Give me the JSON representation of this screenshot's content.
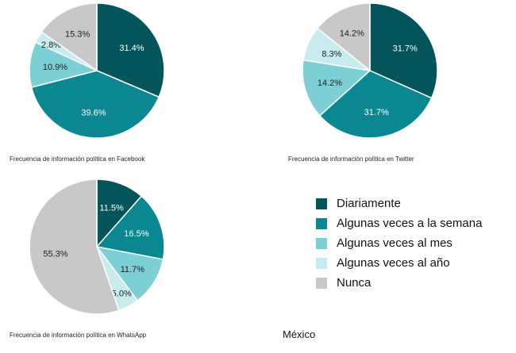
{
  "legend": {
    "items": [
      {
        "label": "Diariamente",
        "color": "#04545c"
      },
      {
        "label": "Algunas veces a la semana",
        "color": "#0b8791"
      },
      {
        "label": "Algunas veces al mes",
        "color": "#7ccfd5"
      },
      {
        "label": "Algunas veces al año",
        "color": "#c8ebef"
      },
      {
        "label": "Nunca",
        "color": "#c8c8c8"
      }
    ]
  },
  "country": "México",
  "chart_data": [
    {
      "type": "pie",
      "title": "Frecuencia de información política en Facebook",
      "categories": [
        "Diariamente",
        "Algunas veces a la semana",
        "Algunas veces al mes",
        "Algunas veces al año",
        "Nunca"
      ],
      "values": [
        31.4,
        39.6,
        10.9,
        2.8,
        15.3
      ],
      "labels": [
        "31.4%",
        "39.6%",
        "10.9%",
        "2.8%",
        "15.3%"
      ]
    },
    {
      "type": "pie",
      "title": "Frecuencia de información política en Twitter",
      "categories": [
        "Diariamente",
        "Algunas veces a la semana",
        "Algunas veces al mes",
        "Algunas veces al año",
        "Nunca"
      ],
      "values": [
        31.7,
        31.7,
        14.2,
        8.3,
        14.2
      ],
      "labels": [
        "31.7%",
        "31.7%",
        "14.2%",
        "8.3%",
        "14.2%"
      ]
    },
    {
      "type": "pie",
      "title": "Frecuencia de información política en WhatsApp",
      "categories": [
        "Diariamente",
        "Algunas veces a la semana",
        "Algunas veces al mes",
        "Algunas veces al año",
        "Nunca"
      ],
      "values": [
        11.5,
        16.5,
        11.7,
        5.0,
        55.3
      ],
      "labels": [
        "11.5%",
        "16.5%",
        "11.7%",
        "5.0%",
        "55.3%"
      ]
    }
  ]
}
